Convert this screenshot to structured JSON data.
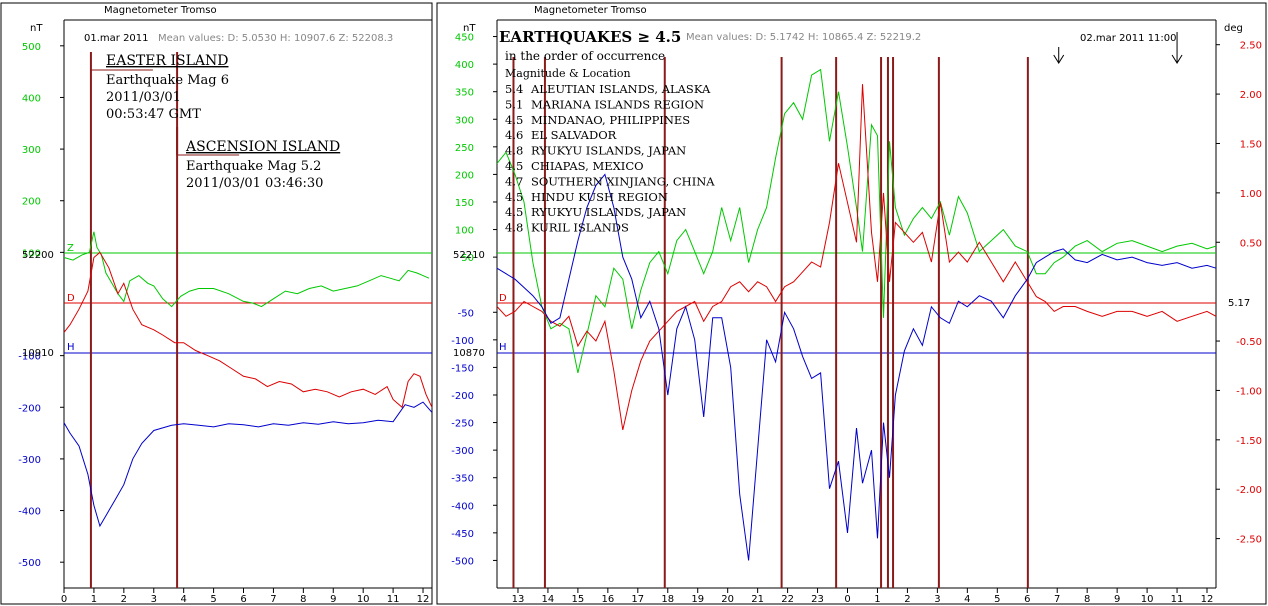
{
  "colors": {
    "green": "#00c800",
    "red": "#dd0000",
    "blue": "#0000cc",
    "quake": "#8b1a1a",
    "frame": "#000000",
    "meta": "#888888"
  },
  "left_panel": {
    "header": "Magnetometer Tromso",
    "unit": "nT",
    "date": "01.mar 2011",
    "mean_values": "Mean values:  D: 5.0530   H: 10907.6   Z: 52208.3",
    "z_baseline_label": "52200",
    "h_baseline_label": "10910",
    "z_letter": "Z",
    "d_letter": "D",
    "h_letter": "H",
    "annotations": [
      {
        "lines": [
          "EASTER ISLAND",
          "Earthquake Mag 6",
          "2011/03/01",
          "00:53:47 GMT"
        ]
      },
      {
        "lines": [
          "ASCENSION ISLAND",
          "Earthquake Mag 5.2",
          "2011/03/01 03:46:30"
        ]
      }
    ]
  },
  "right_panel": {
    "header": "Magnetometer Tromso",
    "unit": "nT",
    "right_unit": "deg",
    "title": "EARTHQUAKES ≥ 4.5",
    "subtitle": "in the order of occurrence",
    "list_header": "Magnitude   &   Location",
    "mean_values": "Mean values: D: 5.1742    H: 10865.4    Z: 52219.2",
    "date2": "02.mar 2011 11:00",
    "z_baseline_label": "52210",
    "h_baseline_label": "10870",
    "d_value_label": "5.17",
    "d_letter": "D",
    "h_letter": "H",
    "earthquakes": [
      {
        "mag": "5.4",
        "location": "ALEUTIAN ISLANDS, ALASKA"
      },
      {
        "mag": "5.1",
        "location": "MARIANA ISLANDS REGION"
      },
      {
        "mag": "4.5",
        "location": "MINDANAO, PHILIPPINES"
      },
      {
        "mag": "4.6",
        "location": "EL SALVADOR"
      },
      {
        "mag": "4.8",
        "location": "RYUKYU ISLANDS, JAPAN"
      },
      {
        "mag": "4.5",
        "location": "CHIAPAS, MEXICO"
      },
      {
        "mag": "4.7",
        "location": "SOUTHERN XINJIANG, CHINA"
      },
      {
        "mag": "4.5",
        "location": "HINDU KUSH REGION"
      },
      {
        "mag": "4.5",
        "location": "RYUKYU ISLANDS, JAPAN"
      },
      {
        "mag": "4.8",
        "location": "KURIL ISLANDS"
      }
    ]
  },
  "chart_data": [
    {
      "type": "line",
      "x_ticks": [
        "0",
        "1",
        "2",
        "3",
        "4",
        "5",
        "6",
        "7",
        "8",
        "9",
        "10",
        "11",
        "12"
      ],
      "xlim": [
        0,
        12.3
      ],
      "ylim": [
        -550,
        550
      ],
      "y_ticks_green": [
        500,
        400,
        300,
        200,
        100
      ],
      "y_ticks_blue": [
        -100,
        -200,
        -300,
        -400,
        -500
      ],
      "z_baseline": 52200,
      "h_baseline": 10910,
      "quake_times": [
        0.9,
        3.78
      ],
      "series": [
        {
          "name": "Z",
          "color": "#00c800",
          "axis": "left",
          "x": [
            0,
            0.3,
            0.6,
            0.85,
            1.0,
            1.1,
            1.25,
            1.4,
            1.6,
            1.8,
            2.0,
            2.2,
            2.5,
            2.8,
            3.0,
            3.3,
            3.6,
            3.9,
            4.2,
            4.5,
            5.0,
            5.5,
            6.0,
            6.3,
            6.6,
            7.0,
            7.4,
            7.8,
            8.2,
            8.6,
            9.0,
            9.4,
            9.8,
            10.2,
            10.6,
            10.9,
            11.2,
            11.5,
            11.8,
            12.0,
            12.2
          ],
          "y": [
            90,
            85,
            95,
            100,
            140,
            110,
            95,
            60,
            40,
            20,
            5,
            45,
            55,
            40,
            35,
            10,
            -5,
            15,
            25,
            30,
            30,
            20,
            5,
            2,
            -5,
            10,
            25,
            20,
            30,
            35,
            25,
            30,
            35,
            45,
            55,
            50,
            45,
            65,
            60,
            55,
            50
          ]
        },
        {
          "name": "D",
          "color": "#dd0000",
          "axis": "left",
          "x": [
            0,
            0.2,
            0.5,
            0.8,
            1.0,
            1.2,
            1.5,
            1.8,
            2.0,
            2.3,
            2.6,
            3.0,
            3.3,
            3.7,
            4.0,
            4.4,
            4.8,
            5.2,
            5.6,
            6.0,
            6.4,
            6.8,
            7.2,
            7.6,
            8.0,
            8.4,
            8.8,
            9.2,
            9.6,
            10.0,
            10.4,
            10.8,
            11.0,
            11.3,
            11.5,
            11.7,
            11.9,
            12.1,
            12.3
          ],
          "y": [
            -55,
            -40,
            -10,
            25,
            90,
            100,
            70,
            20,
            40,
            -10,
            -40,
            -50,
            -60,
            -75,
            -75,
            -90,
            -100,
            -110,
            -125,
            -140,
            -145,
            -160,
            -150,
            -155,
            -170,
            -165,
            -170,
            -180,
            -170,
            -165,
            -175,
            -160,
            -185,
            -200,
            -150,
            -135,
            -140,
            -175,
            -200
          ]
        },
        {
          "name": "H",
          "color": "#0000cc",
          "axis": "left",
          "x": [
            0,
            0.2,
            0.5,
            0.8,
            1.0,
            1.2,
            1.4,
            1.7,
            2.0,
            2.3,
            2.6,
            3.0,
            3.3,
            3.6,
            4.0,
            4.5,
            5.0,
            5.5,
            6.0,
            6.5,
            7.0,
            7.5,
            8.0,
            8.5,
            9.0,
            9.5,
            10.0,
            10.5,
            11.0,
            11.4,
            11.7,
            12.0,
            12.3
          ],
          "y": [
            -230,
            -250,
            -275,
            -330,
            -390,
            -430,
            -410,
            -380,
            -350,
            -300,
            -270,
            -245,
            -240,
            -235,
            -232,
            -235,
            -238,
            -232,
            -234,
            -238,
            -232,
            -235,
            -230,
            -233,
            -228,
            -232,
            -230,
            -225,
            -228,
            -195,
            -200,
            -190,
            -210
          ]
        }
      ]
    },
    {
      "type": "line",
      "x_ticks": [
        "13",
        "14",
        "15",
        "16",
        "17",
        "18",
        "19",
        "20",
        "21",
        "22",
        "23",
        "0",
        "1",
        "2",
        "3",
        "4",
        "5",
        "6",
        "7",
        "8",
        "9",
        "10",
        "11",
        "12"
      ],
      "xlim": [
        12.3,
        36.3
      ],
      "ylim": [
        -550,
        480
      ],
      "y_ticks_green": [
        450,
        400,
        350,
        300,
        250,
        200,
        150,
        100,
        50
      ],
      "y_ticks_blue": [
        -50,
        -100,
        -150,
        -200,
        -250,
        -300,
        -350,
        -400,
        -450,
        -500
      ],
      "y2_ticks": [
        2.5,
        2.0,
        1.5,
        1.0,
        0.5,
        -0.5,
        -1.0,
        -1.5,
        -2.0,
        -2.5
      ],
      "y2_tick_labels": [
        "2.50",
        "2.00",
        "1.50",
        "1.00",
        "0.50",
        "-0.50",
        "-1.00",
        "-1.50",
        "-2.00",
        "-2.50"
      ],
      "y2lim": [
        -3.0,
        2.75
      ],
      "z_baseline": 52210,
      "h_baseline": 10870,
      "d_value": 5.17,
      "quake_times": [
        12.85,
        13.9,
        17.9,
        21.8,
        23.62,
        25.12,
        25.35,
        25.52,
        27.05,
        30.02
      ],
      "arrow_times": [
        31.05,
        35.0
      ],
      "series": [
        {
          "name": "Z",
          "color": "#00c800",
          "axis": "left",
          "x": [
            12.3,
            12.6,
            12.9,
            13.2,
            13.5,
            13.8,
            14.1,
            14.4,
            14.7,
            15.0,
            15.3,
            15.6,
            15.9,
            16.2,
            16.5,
            16.8,
            17.1,
            17.4,
            17.7,
            18.0,
            18.3,
            18.6,
            18.9,
            19.2,
            19.5,
            19.8,
            20.1,
            20.4,
            20.7,
            21.0,
            21.3,
            21.6,
            21.9,
            22.2,
            22.5,
            22.8,
            23.1,
            23.4,
            23.7,
            24.0,
            24.3,
            24.5,
            24.8,
            25.0,
            25.2,
            25.4,
            25.6,
            25.9,
            26.2,
            26.5,
            26.8,
            27.1,
            27.4,
            27.7,
            28.0,
            28.4,
            28.8,
            29.2,
            29.6,
            30.0,
            30.3,
            30.6,
            30.9,
            31.2,
            31.6,
            32.0,
            32.5,
            33.0,
            33.5,
            34.0,
            34.5,
            35.0,
            35.5,
            36.0,
            36.3
          ],
          "y": [
            220,
            240,
            200,
            150,
            40,
            -40,
            -80,
            -70,
            -80,
            -160,
            -90,
            -20,
            -40,
            30,
            10,
            -80,
            -10,
            40,
            60,
            20,
            80,
            100,
            60,
            20,
            60,
            140,
            80,
            140,
            40,
            100,
            140,
            230,
            310,
            330,
            300,
            380,
            390,
            260,
            350,
            250,
            140,
            60,
            290,
            270,
            -60,
            260,
            140,
            90,
            120,
            140,
            120,
            150,
            90,
            160,
            130,
            60,
            80,
            100,
            70,
            60,
            20,
            20,
            40,
            50,
            70,
            80,
            60,
            75,
            80,
            70,
            60,
            70,
            75,
            65,
            70
          ]
        },
        {
          "name": "D",
          "color": "#dd0000",
          "axis": "right",
          "x": [
            12.3,
            12.6,
            12.9,
            13.2,
            13.5,
            13.8,
            14.1,
            14.4,
            14.7,
            15.0,
            15.3,
            15.6,
            15.9,
            16.2,
            16.5,
            16.8,
            17.1,
            17.4,
            17.7,
            18.0,
            18.3,
            18.6,
            18.9,
            19.2,
            19.5,
            19.8,
            20.1,
            20.4,
            20.7,
            21.0,
            21.3,
            21.6,
            21.9,
            22.2,
            22.5,
            22.8,
            23.1,
            23.4,
            23.7,
            24.0,
            24.3,
            24.5,
            24.8,
            25.0,
            25.2,
            25.4,
            25.6,
            25.9,
            26.2,
            26.5,
            26.8,
            27.1,
            27.4,
            27.7,
            28.0,
            28.4,
            28.8,
            29.2,
            29.6,
            30.0,
            30.3,
            30.6,
            30.9,
            31.2,
            31.6,
            32.0,
            32.5,
            33.0,
            33.5,
            34.0,
            34.5,
            35.0,
            35.5,
            36.0,
            36.3
          ],
          "y": [
            -0.15,
            -0.25,
            -0.2,
            -0.1,
            -0.15,
            -0.2,
            -0.3,
            -0.35,
            -0.25,
            -0.55,
            -0.4,
            -0.5,
            -0.3,
            -0.8,
            -1.4,
            -1.0,
            -0.7,
            -0.5,
            -0.4,
            -0.3,
            -0.2,
            -0.15,
            -0.1,
            -0.3,
            -0.15,
            -0.1,
            0.05,
            0.1,
            0.0,
            0.1,
            0.05,
            -0.1,
            0.05,
            0.1,
            0.2,
            0.3,
            0.25,
            0.7,
            1.3,
            0.9,
            0.5,
            2.1,
            0.6,
            0.1,
            1.0,
            0.1,
            0.7,
            0.6,
            0.5,
            0.6,
            0.3,
            0.9,
            0.3,
            0.4,
            0.3,
            0.5,
            0.3,
            0.1,
            0.3,
            0.1,
            -0.05,
            -0.1,
            -0.2,
            -0.15,
            -0.15,
            -0.2,
            -0.25,
            -0.2,
            -0.2,
            -0.25,
            -0.2,
            -0.3,
            -0.25,
            -0.2,
            -0.25
          ]
        },
        {
          "name": "H",
          "color": "#0000cc",
          "axis": "left",
          "x": [
            12.3,
            12.6,
            12.9,
            13.2,
            13.5,
            13.8,
            14.1,
            14.4,
            14.7,
            15.0,
            15.3,
            15.6,
            15.9,
            16.2,
            16.5,
            16.8,
            17.1,
            17.4,
            17.7,
            18.0,
            18.3,
            18.6,
            18.9,
            19.2,
            19.5,
            19.8,
            20.1,
            20.4,
            20.7,
            21.0,
            21.3,
            21.6,
            21.9,
            22.2,
            22.5,
            22.8,
            23.1,
            23.4,
            23.7,
            24.0,
            24.3,
            24.5,
            24.8,
            25.0,
            25.2,
            25.4,
            25.6,
            25.9,
            26.2,
            26.5,
            26.8,
            27.1,
            27.4,
            27.7,
            28.0,
            28.4,
            28.8,
            29.2,
            29.6,
            30.0,
            30.3,
            30.6,
            30.9,
            31.2,
            31.6,
            32.0,
            32.5,
            33.0,
            33.5,
            34.0,
            34.5,
            35.0,
            35.5,
            36.0,
            36.3
          ],
          "y": [
            30,
            20,
            10,
            -5,
            -20,
            -40,
            -70,
            -60,
            10,
            80,
            140,
            180,
            200,
            140,
            50,
            10,
            -60,
            -30,
            -80,
            -200,
            -80,
            -40,
            -100,
            -240,
            -60,
            -60,
            -150,
            -380,
            -500,
            -300,
            -100,
            -140,
            -50,
            -80,
            -130,
            -170,
            -160,
            -370,
            -320,
            -450,
            -260,
            -360,
            -300,
            -460,
            -250,
            -350,
            -200,
            -120,
            -80,
            -110,
            -40,
            -60,
            -70,
            -30,
            -40,
            -20,
            -30,
            -60,
            -20,
            10,
            40,
            50,
            60,
            65,
            45,
            40,
            55,
            45,
            50,
            40,
            35,
            40,
            30,
            35,
            30
          ]
        }
      ]
    }
  ]
}
